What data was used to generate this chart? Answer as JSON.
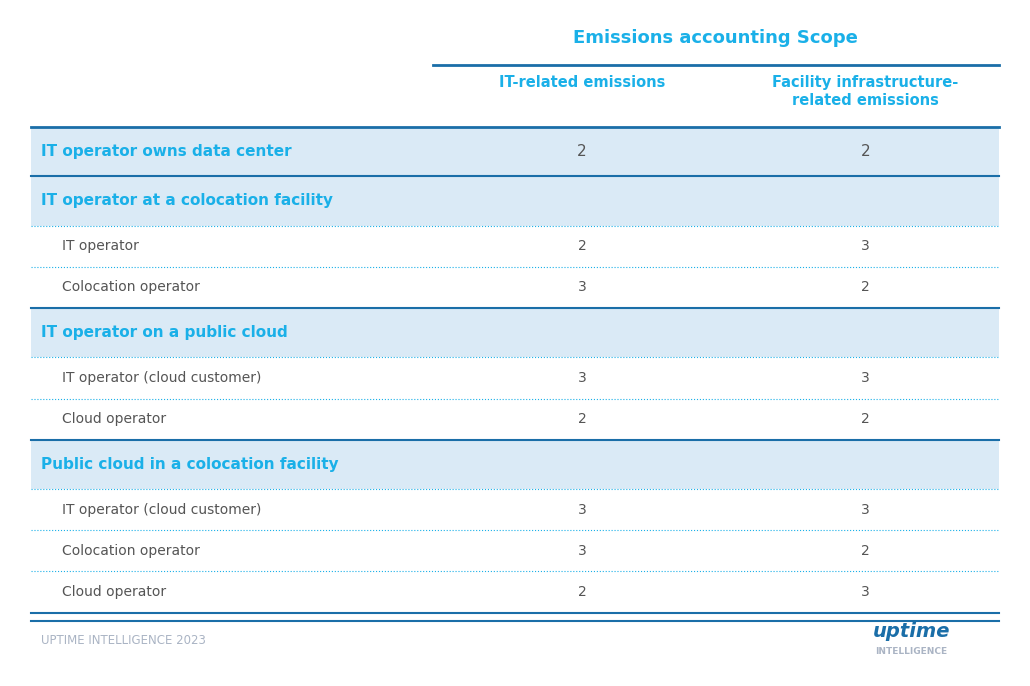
{
  "title": "Emissions accounting Scope",
  "col_headers": [
    "IT-related emissions",
    "Facility infrastructure-\nrelated emissions"
  ],
  "groups": [
    {
      "header": "IT operator owns data center",
      "header_bold": true,
      "header_bg": "#daeaf6",
      "rows": [],
      "values": [
        [
          "2",
          "2"
        ]
      ],
      "single_row": true
    },
    {
      "header": "IT operator at a colocation facility",
      "header_bold": true,
      "header_bg": "#daeaf6",
      "rows": [
        "IT operator",
        "Colocation operator"
      ],
      "values": [
        [
          "2",
          "3"
        ],
        [
          "3",
          "2"
        ]
      ],
      "single_row": false
    },
    {
      "header": "IT operator on a public cloud",
      "header_bold": true,
      "header_bg": "#daeaf6",
      "rows": [
        "IT operator (cloud customer)",
        "Cloud operator"
      ],
      "values": [
        [
          "3",
          "3"
        ],
        [
          "2",
          "2"
        ]
      ],
      "single_row": false
    },
    {
      "header": "Public cloud in a colocation facility",
      "header_bold": true,
      "header_bg": "#daeaf6",
      "rows": [
        "IT operator (cloud customer)",
        "Colocation operator",
        "Cloud operator"
      ],
      "values": [
        [
          "3",
          "3"
        ],
        [
          "3",
          "2"
        ],
        [
          "2",
          "3"
        ]
      ],
      "single_row": false
    }
  ],
  "header_text_color": "#1ab0e8",
  "group_header_text_color": "#1ab0e8",
  "row_text_color": "#555555",
  "value_text_color": "#555555",
  "thick_line_color": "#1a6ea8",
  "dotted_line_color": "#1ab0e8",
  "bg_color": "#ffffff",
  "header_bg": "#daeaf6",
  "footer_text": "UPTIME INTELLIGENCE 2023",
  "footer_text_color": "#aab4c4",
  "uptime_color": "#1a6ea8",
  "intelligence_color": "#aab4c4"
}
